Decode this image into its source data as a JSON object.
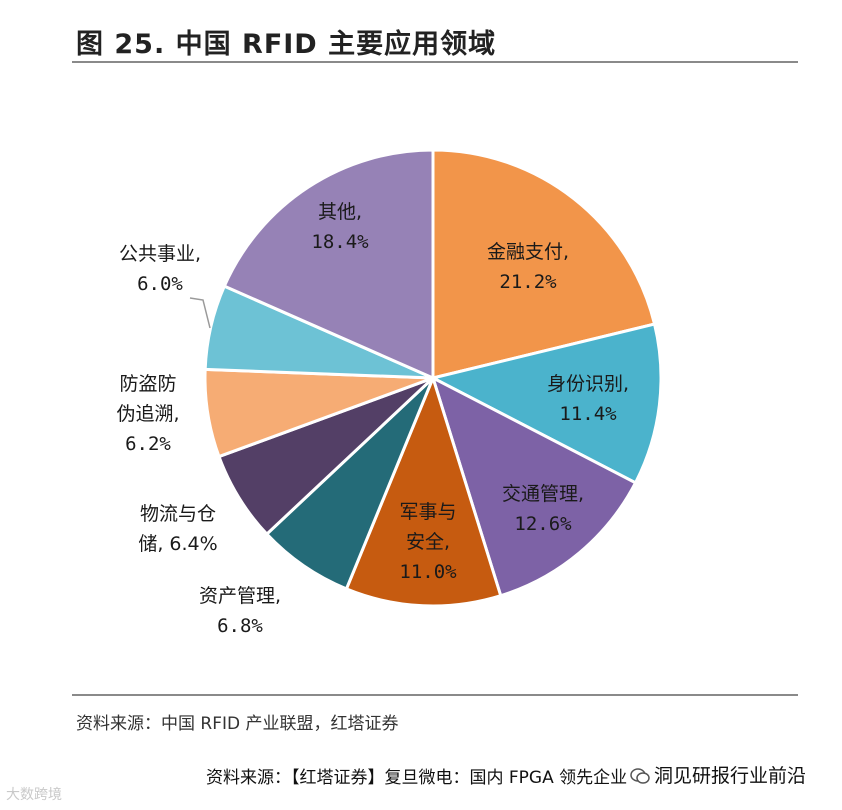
{
  "title": "图 25. 中国 RFID 主要应用领域",
  "source": "资料来源：中国 RFID 产业联盟，红塔证券",
  "footer": {
    "source_line": "资料来源：【红塔证券】复旦微电：国内 FPGA 领先企业",
    "brand": "洞见研报行业前沿",
    "watermark": "大数跨境"
  },
  "colors": {
    "金融支付": "#f2954a",
    "身份识别": "#4bb3cc",
    "交通管理": "#7d62a6",
    "军事与安全": "#c65b10",
    "资产管理": "#246b78",
    "物流与仓储": "#533f66",
    "防盗防伪追溯": "#f6ac74",
    "公共事业": "#6dc2d5",
    "其他": "#9682b6"
  },
  "chart_data": {
    "type": "pie",
    "title": "图 25. 中国 RFID 主要应用领域",
    "slices": [
      {
        "label_lines": [
          "金融支付,"
        ],
        "pct_text": "21.2%",
        "value": 21.2,
        "key": "金融支付"
      },
      {
        "label_lines": [
          "身份识别,"
        ],
        "pct_text": "11.4%",
        "value": 11.4,
        "key": "身份识别"
      },
      {
        "label_lines": [
          "交通管理,"
        ],
        "pct_text": "12.6%",
        "value": 12.6,
        "key": "交通管理"
      },
      {
        "label_lines": [
          "军事与",
          "安全,"
        ],
        "pct_text": "11.0%",
        "value": 11.0,
        "key": "军事与安全"
      },
      {
        "label_lines": [
          "资产管理,"
        ],
        "pct_text": "6.8%",
        "value": 6.8,
        "key": "资产管理"
      },
      {
        "label_lines": [
          "物流与仓",
          "储, 6.4%"
        ],
        "pct_text": "",
        "value": 6.4,
        "key": "物流与仓储"
      },
      {
        "label_lines": [
          "防盗防",
          "伪追溯,"
        ],
        "pct_text": "6.2%",
        "value": 6.2,
        "key": "防盗防伪追溯"
      },
      {
        "label_lines": [
          "公共事业,"
        ],
        "pct_text": "6.0%",
        "value": 6.0,
        "key": "公共事业"
      },
      {
        "label_lines": [
          "其他,"
        ],
        "pct_text": "18.4%",
        "value": 18.4,
        "key": "其他"
      }
    ]
  }
}
